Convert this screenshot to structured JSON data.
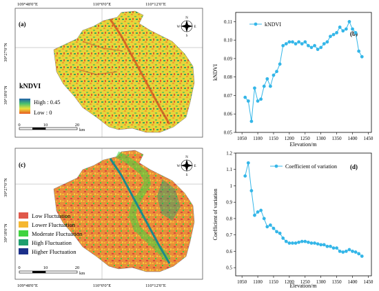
{
  "map_a": {
    "panel_label": "(a)",
    "top_ticks": [
      "109°48'0\"E",
      "110°0'0\"E",
      "110°12'0\"E"
    ],
    "left_ticks": [
      "39°27'0\"N",
      "39°18'0\"N"
    ],
    "legend_title": "kNDVI",
    "legend_high": "High : 0.45",
    "legend_low": "Low : 0",
    "scale_ticks": [
      "0",
      "10",
      "20"
    ],
    "scale_unit": "km",
    "compass": {
      "n": "N",
      "s": "S",
      "e": "E",
      "w": "W"
    }
  },
  "map_c": {
    "panel_label": "(c)",
    "bottom_ticks": [
      "109°48'0\"E",
      "110°0'0\"E",
      "110°12'0\"E"
    ],
    "left_ticks": [
      "39°27'0\"N",
      "39°18'0\"N"
    ],
    "legend_items": [
      {
        "label": "Low Fluctuation",
        "color": "#e0584a"
      },
      {
        "label": "Lower Fluctuation",
        "color": "#f5b731"
      },
      {
        "label": "Moderate Fluctuation",
        "color": "#3fd33f"
      },
      {
        "label": "High Fluctuation",
        "color": "#1e9e6e"
      },
      {
        "label": "Higher Fluctuation",
        "color": "#1b2f8a"
      }
    ],
    "scale_ticks": [
      "0",
      "10",
      "20"
    ],
    "scale_unit": "km",
    "compass": {
      "n": "N",
      "s": "S",
      "e": "E",
      "w": "W"
    }
  },
  "chart_data": [
    {
      "type": "line",
      "panel_label": "(b)",
      "legend": "kNDVI",
      "xlabel": "Elevation/m",
      "ylabel": "kNDVI",
      "xlim": [
        1030,
        1460
      ],
      "ylim": [
        0.05,
        0.115
      ],
      "xticks": [
        1050,
        1100,
        1150,
        1200,
        1250,
        1300,
        1350,
        1400,
        1450
      ],
      "yticks": [
        0.05,
        0.06,
        0.07,
        0.08,
        0.09,
        0.1,
        0.11
      ],
      "ytick_labels": [
        "0.05",
        "0.06",
        "0.07",
        "0.08",
        "0.09",
        "0.10",
        "0.11"
      ],
      "color": "#34b6e8",
      "series": [
        {
          "x": [
            1060,
            1070,
            1080,
            1090,
            1100,
            1110,
            1120,
            1130,
            1140,
            1150,
            1160,
            1170,
            1180,
            1190,
            1200,
            1210,
            1220,
            1230,
            1240,
            1250,
            1260,
            1270,
            1280,
            1290,
            1300,
            1310,
            1320,
            1330,
            1340,
            1350,
            1360,
            1370,
            1380,
            1390,
            1400,
            1410,
            1420,
            1430
          ],
          "values": [
            0.069,
            0.067,
            0.056,
            0.074,
            0.067,
            0.068,
            0.075,
            0.079,
            0.075,
            0.081,
            0.083,
            0.087,
            0.097,
            0.098,
            0.099,
            0.099,
            0.098,
            0.099,
            0.098,
            0.099,
            0.097,
            0.096,
            0.097,
            0.095,
            0.096,
            0.098,
            0.099,
            0.102,
            0.103,
            0.104,
            0.107,
            0.105,
            0.106,
            0.11,
            0.106,
            0.104,
            0.094,
            0.091
          ]
        }
      ]
    },
    {
      "type": "line",
      "panel_label": "(d)",
      "legend": "Coefficient of variation",
      "xlabel": "Elevation/m",
      "ylabel": "Coefficient of variation",
      "xlim": [
        1030,
        1460
      ],
      "ylim": [
        0.45,
        1.2
      ],
      "xticks": [
        1050,
        1100,
        1150,
        1200,
        1250,
        1300,
        1350,
        1400,
        1450
      ],
      "yticks": [
        0.5,
        0.6,
        0.7,
        0.8,
        0.9,
        1.0,
        1.1,
        1.2
      ],
      "ytick_labels": [
        "0.5",
        "0.6",
        "0.7",
        "0.8",
        "0.9",
        "1",
        "1.1",
        "1.2"
      ],
      "color": "#34b6e8",
      "series": [
        {
          "x": [
            1060,
            1070,
            1080,
            1090,
            1100,
            1110,
            1120,
            1130,
            1140,
            1150,
            1160,
            1170,
            1180,
            1190,
            1200,
            1210,
            1220,
            1230,
            1240,
            1250,
            1260,
            1270,
            1280,
            1290,
            1300,
            1310,
            1320,
            1330,
            1340,
            1350,
            1360,
            1370,
            1380,
            1390,
            1400,
            1410,
            1420,
            1430
          ],
          "values": [
            1.06,
            1.14,
            0.97,
            0.82,
            0.84,
            0.85,
            0.8,
            0.75,
            0.76,
            0.74,
            0.72,
            0.71,
            0.68,
            0.66,
            0.65,
            0.65,
            0.65,
            0.655,
            0.66,
            0.66,
            0.655,
            0.65,
            0.65,
            0.645,
            0.64,
            0.64,
            0.63,
            0.63,
            0.62,
            0.62,
            0.6,
            0.595,
            0.6,
            0.61,
            0.6,
            0.595,
            0.585,
            0.57
          ]
        }
      ]
    }
  ]
}
